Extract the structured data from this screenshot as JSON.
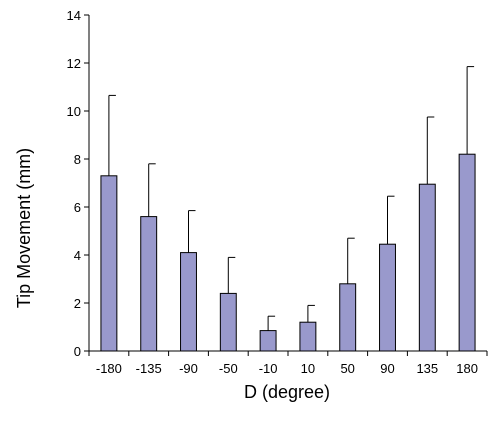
{
  "chart_data": {
    "type": "bar",
    "categories": [
      "-180",
      "-135",
      "-90",
      "-50",
      "-10",
      "10",
      "50",
      "90",
      "135",
      "180"
    ],
    "values": [
      7.3,
      5.6,
      4.1,
      2.4,
      0.85,
      1.2,
      2.8,
      4.45,
      6.95,
      8.2
    ],
    "error_upper": [
      10.65,
      7.8,
      5.85,
      3.9,
      1.45,
      1.9,
      4.7,
      6.45,
      9.75,
      11.85
    ],
    "xlabel": "D (degree)",
    "ylabel": "Tip Movement (mm)",
    "ylim": [
      0,
      14
    ],
    "yticks": [
      "0",
      "2",
      "4",
      "6",
      "8",
      "10",
      "12",
      "14"
    ],
    "grid": false,
    "bar_color": "#9999cc"
  }
}
